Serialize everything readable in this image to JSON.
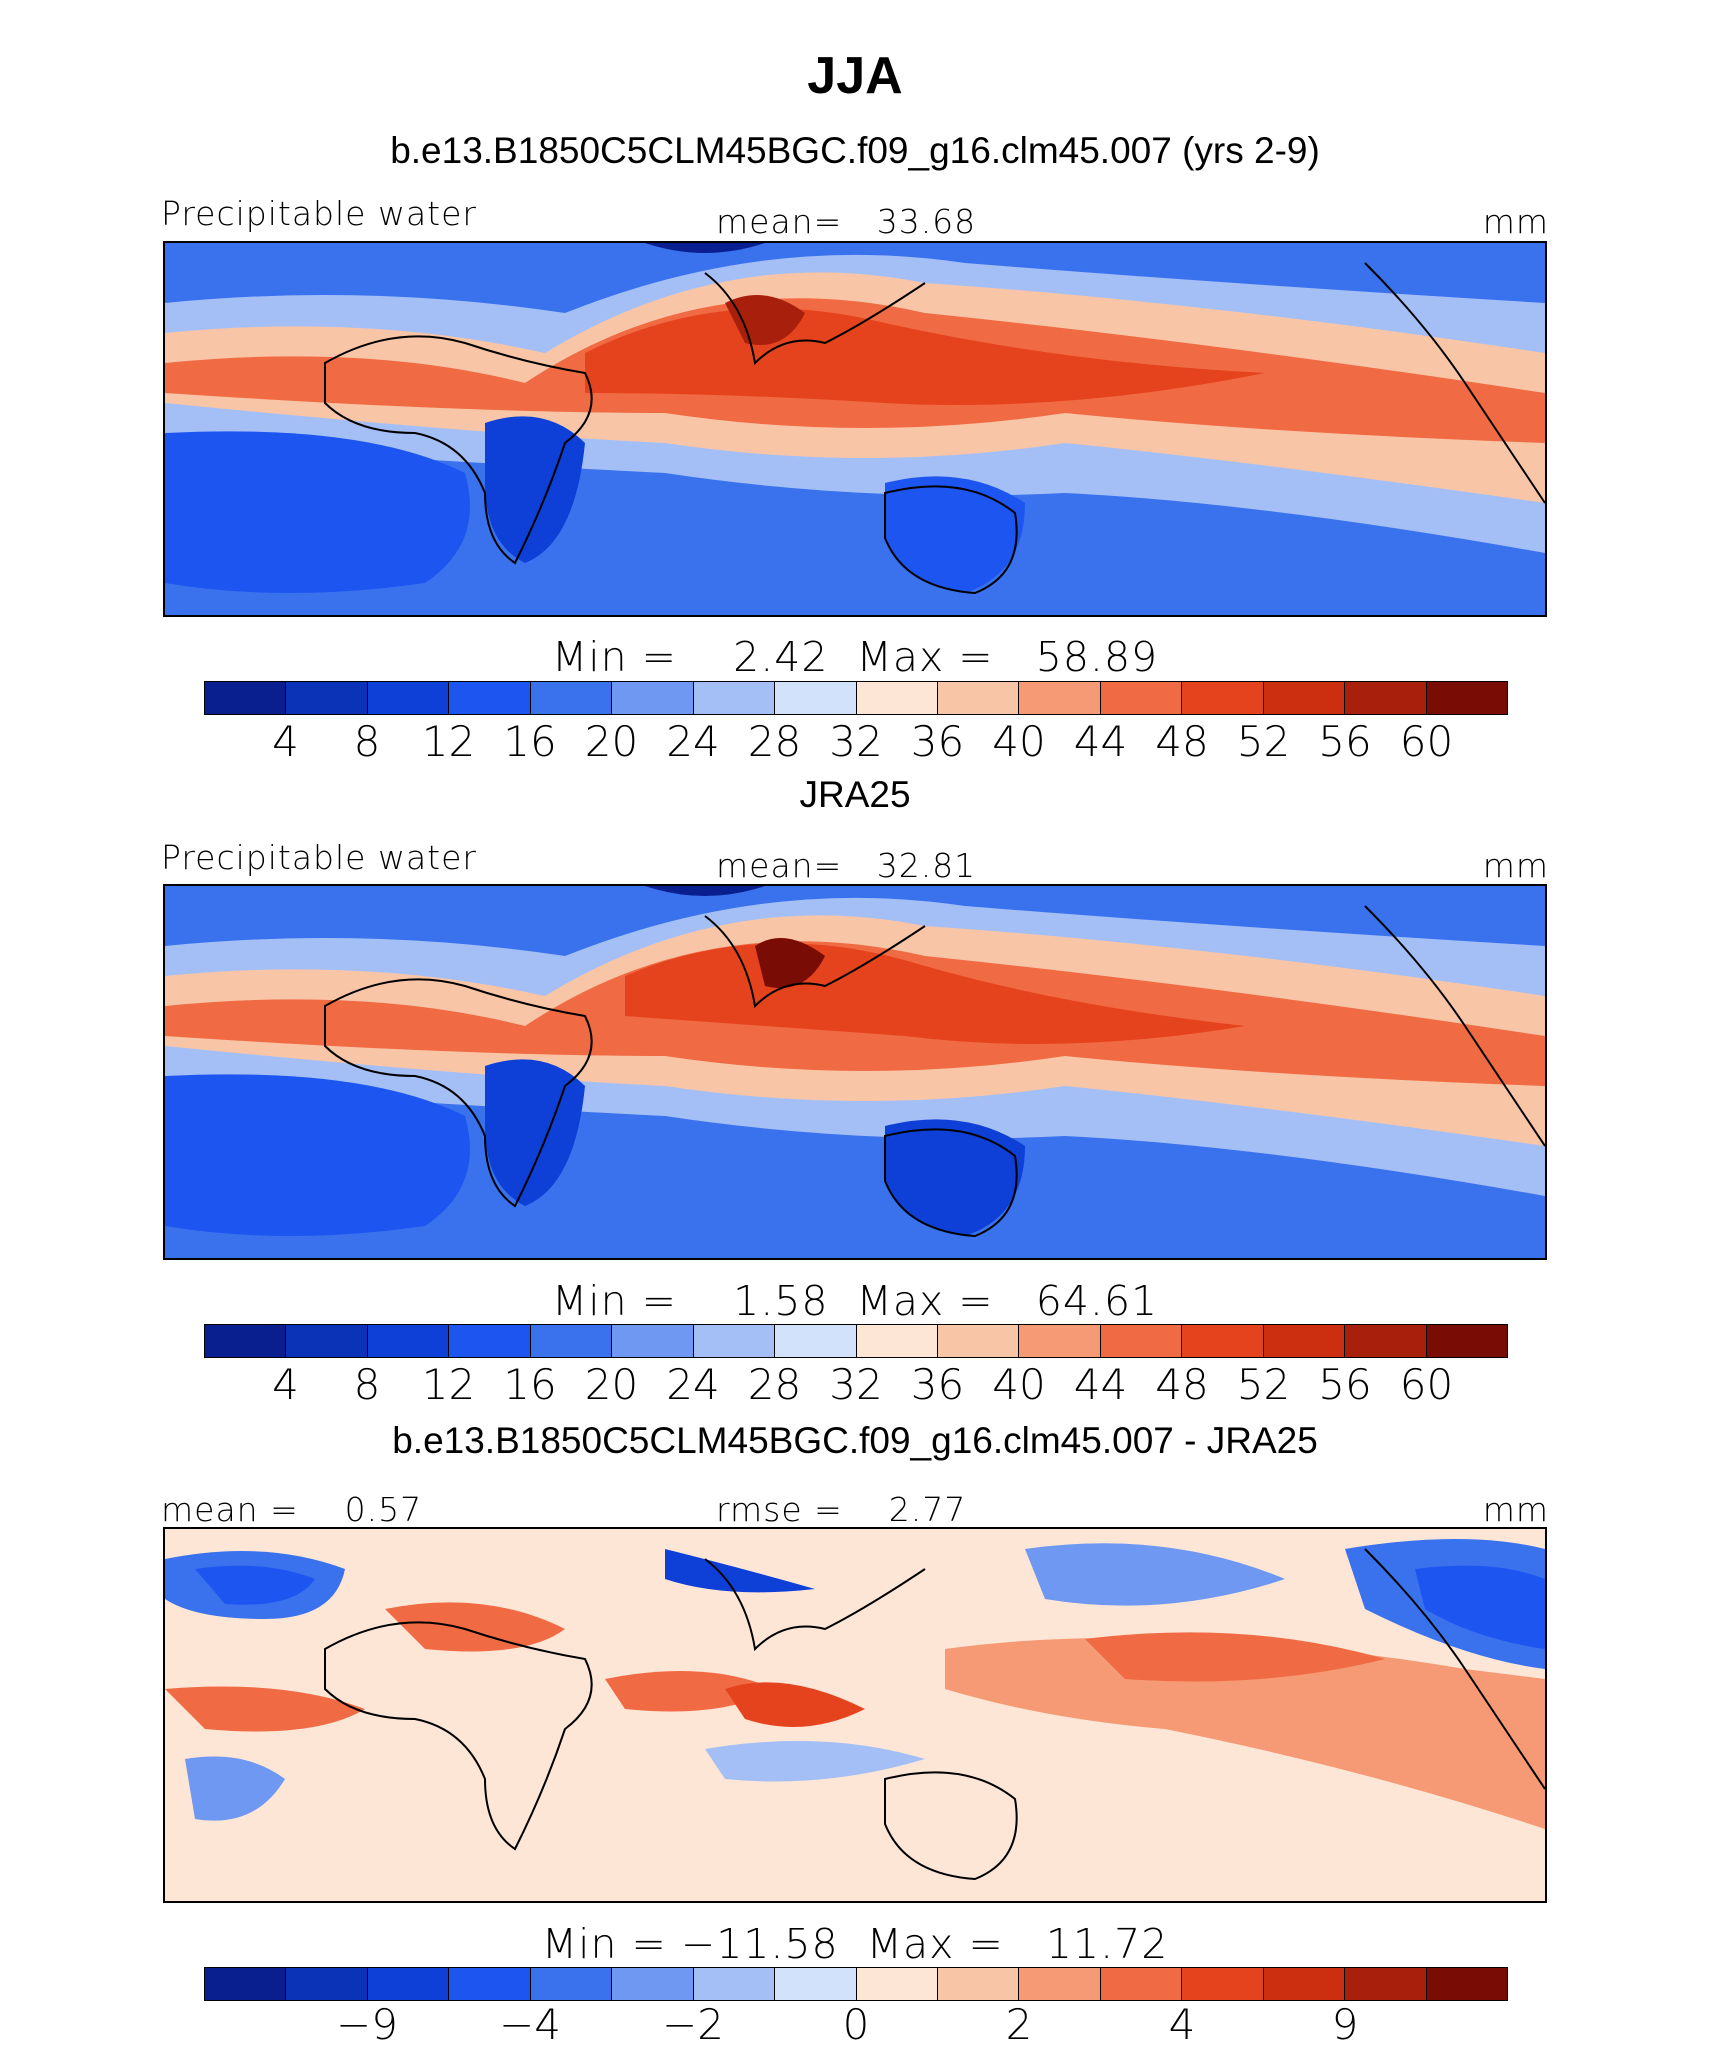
{
  "title": "JJA",
  "colors": {
    "scale": [
      "#0a1f8f",
      "#0b33b8",
      "#0e3fd6",
      "#1d55f0",
      "#3a72ee",
      "#6f98f2",
      "#a4bff6",
      "#d3e2fb",
      "#fde6d6",
      "#f9c5a7",
      "#f59a74",
      "#f06a43",
      "#e5431e",
      "#cc2e10",
      "#a81f0b",
      "#7a0c06"
    ],
    "ocean_low": "#3a72ee",
    "coast": "#000000"
  },
  "panels": [
    {
      "subtitle": "b.e13.B1850C5CLM45BGC.f09_g16.clm45.007 (yrs 2-9)",
      "left_label": "Precipitable water",
      "center_label": "mean=   33.68",
      "right_label": "mm",
      "minmax": "Min =    2.42  Max =   58.89",
      "ticks": [
        "4",
        "8",
        "12",
        "16",
        "20",
        "24",
        "28",
        "32",
        "36",
        "40",
        "44",
        "48",
        "52",
        "56",
        "60"
      ]
    },
    {
      "subtitle": "JRA25",
      "left_label": "Precipitable water",
      "center_label": "mean=   32.81",
      "right_label": "mm",
      "minmax": "Min =    1.58  Max =   64.61",
      "ticks": [
        "4",
        "8",
        "12",
        "16",
        "20",
        "24",
        "28",
        "32",
        "36",
        "40",
        "44",
        "48",
        "52",
        "56",
        "60"
      ]
    },
    {
      "subtitle": "b.e13.B1850C5CLM45BGC.f09_g16.clm45.007 - JRA25",
      "left_label": "mean =    0.57",
      "center_label": "rmse =    2.77",
      "right_label": "mm",
      "minmax": "Min = −11.58  Max =   11.72",
      "ticks": [
        "−9",
        "",
        "−4",
        "",
        "−2",
        "",
        "0",
        "",
        "2",
        "",
        "4",
        "",
        "9"
      ]
    }
  ]
}
